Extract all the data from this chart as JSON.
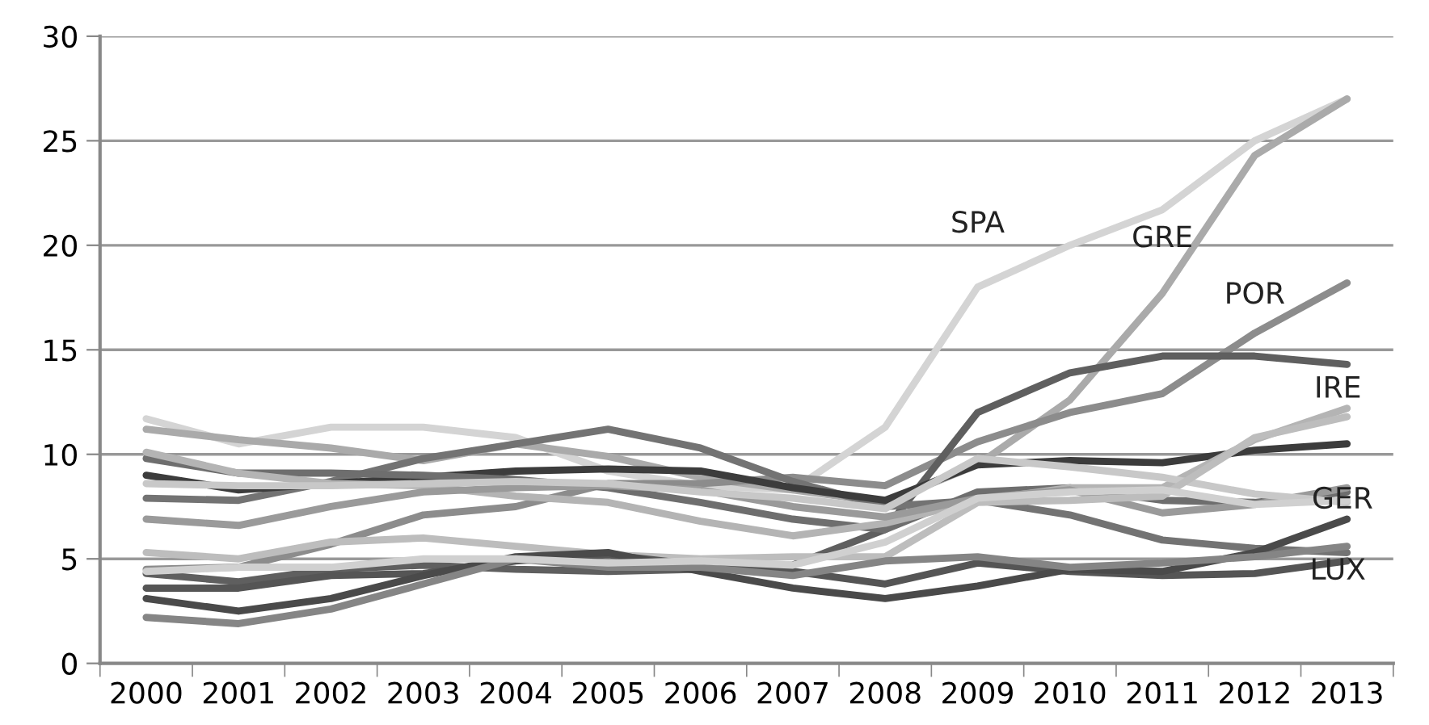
{
  "chart_data": {
    "type": "line",
    "categories": [
      "2000",
      "2001",
      "2002",
      "2003",
      "2004",
      "2005",
      "2006",
      "2007",
      "2008",
      "2009",
      "2010",
      "2011",
      "2012",
      "2013"
    ],
    "ylim": [
      0,
      30
    ],
    "yticks": [
      0,
      5,
      10,
      15,
      20,
      25,
      30
    ],
    "grid": "y",
    "legend": false,
    "marker": "none",
    "line_style": "solid",
    "series": [
      {
        "name": "SPA",
        "color": "#d4d4d4",
        "values": [
          11.7,
          10.5,
          11.3,
          11.3,
          10.8,
          9.2,
          8.5,
          8.3,
          11.3,
          18.0,
          20.0,
          21.7,
          25.0,
          27.0
        ]
      },
      {
        "name": "GRE",
        "color": "#aaaaaa",
        "values": [
          11.2,
          10.7,
          10.3,
          9.7,
          10.5,
          9.9,
          8.9,
          8.3,
          7.7,
          9.5,
          12.6,
          17.7,
          24.3,
          27.0
        ]
      },
      {
        "name": "POR",
        "color": "#8c8c8c",
        "values": [
          4.5,
          4.6,
          5.7,
          7.1,
          7.5,
          8.6,
          8.6,
          8.9,
          8.5,
          10.6,
          12.0,
          12.9,
          15.8,
          18.2
        ]
      },
      {
        "name": "IRE",
        "color": "#5f5f5f",
        "values": [
          4.3,
          3.9,
          4.5,
          4.7,
          4.5,
          4.4,
          4.5,
          4.7,
          6.4,
          12.0,
          13.9,
          14.7,
          14.7,
          14.3
        ]
      },
      {
        "color": "#737373",
        "values": [
          7.9,
          7.8,
          8.7,
          9.8,
          10.5,
          11.2,
          10.3,
          8.7,
          7.5,
          7.8,
          7.1,
          5.9,
          5.5,
          5.3
        ]
      },
      {
        "color": "#3c3c3c",
        "values": [
          9.0,
          8.3,
          8.6,
          8.9,
          9.2,
          9.3,
          9.2,
          8.4,
          7.8,
          9.5,
          9.7,
          9.6,
          10.2,
          10.5
        ]
      },
      {
        "name": "GER",
        "color": "#6e6e6e",
        "values": [
          9.8,
          9.1,
          9.1,
          9.0,
          8.8,
          8.4,
          7.7,
          6.9,
          6.4,
          8.2,
          8.4,
          7.8,
          7.7,
          8.2
        ]
      },
      {
        "color": "#b4b4b4",
        "values": [
          10.1,
          9.1,
          8.6,
          8.5,
          8.0,
          7.7,
          6.8,
          6.1,
          6.7,
          7.8,
          8.4,
          8.4,
          10.7,
          12.2
        ]
      },
      {
        "color": "#9a9a9a",
        "values": [
          6.9,
          6.6,
          7.5,
          8.2,
          8.4,
          8.5,
          8.3,
          7.5,
          7.0,
          7.9,
          8.3,
          7.2,
          7.6,
          8.4
        ]
      },
      {
        "color": "#c8c8c8",
        "values": [
          8.6,
          8.5,
          8.5,
          8.6,
          8.7,
          8.6,
          8.2,
          7.9,
          7.4,
          9.8,
          9.4,
          8.9,
          8.1,
          7.7
        ]
      },
      {
        "color": "#bdbdbd",
        "values": [
          5.3,
          5.0,
          5.8,
          6.0,
          5.6,
          5.2,
          5.0,
          5.1,
          5.1,
          7.7,
          7.8,
          8.0,
          10.8,
          11.8
        ]
      },
      {
        "name": "LUX",
        "color": "#555555",
        "values": [
          3.6,
          3.6,
          4.2,
          4.3,
          4.9,
          5.2,
          4.7,
          4.4,
          3.8,
          4.8,
          4.4,
          4.2,
          4.3,
          4.9
        ]
      },
      {
        "color": "#4a4a4a",
        "values": [
          3.1,
          2.5,
          3.1,
          4.2,
          5.1,
          5.3,
          4.4,
          3.6,
          3.1,
          3.7,
          4.5,
          4.4,
          5.3,
          6.9
        ]
      },
      {
        "color": "#858585",
        "values": [
          2.2,
          1.9,
          2.6,
          3.8,
          5.0,
          4.6,
          4.6,
          4.2,
          4.9,
          5.1,
          4.6,
          4.8,
          5.1,
          5.6
        ]
      },
      {
        "color": "#d0d0d0",
        "values": [
          4.4,
          4.6,
          4.6,
          5.0,
          5.0,
          4.8,
          4.9,
          4.7,
          5.8,
          7.9,
          8.2,
          8.3,
          7.6,
          7.8
        ]
      }
    ]
  }
}
